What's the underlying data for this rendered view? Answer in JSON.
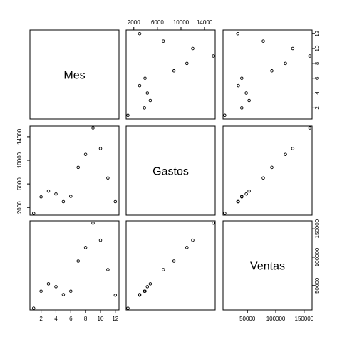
{
  "chart_data": {
    "type": "scatter",
    "kind": "pairs-matrix",
    "variables": [
      "Mes",
      "Gastos",
      "Ventas"
    ],
    "observations": [
      {
        "Mes": 1,
        "Gastos": 1000,
        "Ventas": 10000
      },
      {
        "Mes": 2,
        "Gastos": 3800,
        "Ventas": 40000
      },
      {
        "Mes": 3,
        "Gastos": 4800,
        "Ventas": 53000
      },
      {
        "Mes": 4,
        "Gastos": 4300,
        "Ventas": 48000
      },
      {
        "Mes": 5,
        "Gastos": 3000,
        "Ventas": 34000
      },
      {
        "Mes": 6,
        "Gastos": 3900,
        "Ventas": 40000
      },
      {
        "Mes": 7,
        "Gastos": 8800,
        "Ventas": 93000
      },
      {
        "Mes": 8,
        "Gastos": 11000,
        "Ventas": 117000
      },
      {
        "Mes": 9,
        "Gastos": 15500,
        "Ventas": 160000
      },
      {
        "Mes": 10,
        "Gastos": 12000,
        "Ventas": 130000
      },
      {
        "Mes": 11,
        "Gastos": 7000,
        "Ventas": 78000
      },
      {
        "Mes": 12,
        "Gastos": 3000,
        "Ventas": 33000
      }
    ],
    "axis_ranges": {
      "Mes": [
        0.5,
        12.5
      ],
      "Gastos": [
        700,
        15800
      ],
      "Ventas": [
        7000,
        164000
      ]
    },
    "ticks": {
      "Mes": {
        "bottom": [
          2,
          4,
          6,
          8,
          10,
          12
        ],
        "right": [
          2,
          4,
          6,
          8,
          10,
          12
        ]
      },
      "Gastos": {
        "top": [
          2000,
          6000,
          10000,
          14000
        ],
        "left": [
          2000,
          6000,
          10000,
          14000
        ]
      },
      "Ventas": {
        "bottom": [
          50000,
          100000,
          150000
        ],
        "right": [
          50000,
          100000,
          150000
        ]
      }
    },
    "grid": false,
    "legend": "none",
    "title": "",
    "colors": {
      "points": "#000000",
      "frame": "#000000",
      "background": "#ffffff"
    }
  }
}
